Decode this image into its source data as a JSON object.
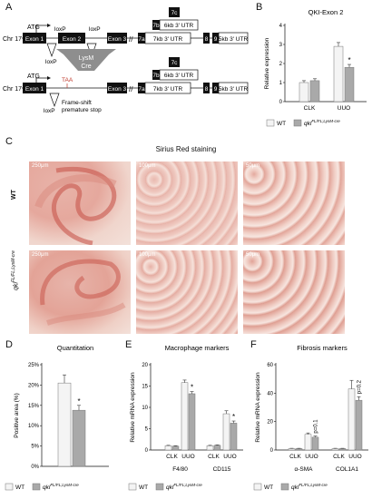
{
  "panels": {
    "A": {
      "letter": "A",
      "atg": "ATG",
      "chr": "Chr 17",
      "exon1": "Exon 1",
      "exon2": "Exon 2",
      "exon3": "Exon 3",
      "ex7a": "7a",
      "ex7b": "7b",
      "ex7c": "7c",
      "utr7b": "6kb 3' UTR",
      "utr7a": "7kb 3' UTR",
      "ex8": "8",
      "ex9": "9",
      "utr9": "5kb 3' UTR",
      "loxp": "loxP",
      "cre_line1": "LysM",
      "cre_line2": "Cre",
      "taa": "TAA",
      "frameshift1": "Frame-shift",
      "frameshift2": "premature stop"
    },
    "B": {
      "letter": "B",
      "title": "QKI-Exon 2",
      "legend_wt": "WT",
      "legend_ko": "qki",
      "legend_ko_sup": "FL/FL;LysM-cre"
    },
    "C": {
      "letter": "C",
      "title": "Sirius Red staining",
      "row_wt": "WT",
      "row_ko": "qki",
      "row_ko_sup": "FL/FL;LysM-cre",
      "scales_wt": [
        "250μm",
        "100μm",
        "50μm"
      ],
      "scales_ko": [
        "250μm",
        "100μm",
        "50μm"
      ]
    },
    "D": {
      "letter": "D",
      "title": "Quantitation",
      "legend_wt": "WT",
      "legend_ko": "qki",
      "legend_ko_sup": "FL/FL;LysM-cre"
    },
    "E": {
      "letter": "E",
      "title": "Macrophage markers",
      "legend_wt": "WT",
      "legend_ko": "qki",
      "legend_ko_sup": "FL/FL;LysM-cre"
    },
    "F": {
      "letter": "F",
      "title": "Fibrosis markers",
      "legend_wt": "WT",
      "legend_ko": "qki",
      "legend_ko_sup": "FL/FL;LysM-cre"
    }
  },
  "colors": {
    "wt": "#f4f4f4",
    "ko": "#a9a9a9",
    "exon": "#111111",
    "taa": "#c0392b",
    "cre": "#8e8e8e"
  },
  "chart_data": [
    {
      "id": "B",
      "type": "bar",
      "title": "QKI-Exon 2",
      "ylabel": "Relative expression",
      "ylim": [
        0,
        4
      ],
      "yticks": [
        0,
        1,
        2,
        3,
        4
      ],
      "categories": [
        "CLK",
        "UUO"
      ],
      "series": [
        {
          "name": "WT",
          "values": [
            1.0,
            2.9
          ],
          "errors": [
            0.1,
            0.2
          ]
        },
        {
          "name": "qki FL/FL;LysM-cre",
          "values": [
            1.1,
            1.8
          ],
          "errors": [
            0.1,
            0.15
          ]
        }
      ],
      "annotations": [
        {
          "text": "*",
          "category": "UUO",
          "series": 1
        }
      ]
    },
    {
      "id": "D",
      "type": "bar",
      "title": "Quantitation",
      "ylabel": "Positive area (%)",
      "ylim": [
        0,
        25
      ],
      "yticks": [
        0,
        5,
        10,
        15,
        20,
        25
      ],
      "categories": [
        ""
      ],
      "series": [
        {
          "name": "WT",
          "values": [
            20.5
          ],
          "errors": [
            2.0
          ]
        },
        {
          "name": "qki FL/FL;LysM-cre",
          "values": [
            13.8
          ],
          "errors": [
            1.2
          ]
        }
      ],
      "annotations": [
        {
          "text": "*",
          "category": "",
          "series": 1
        }
      ]
    },
    {
      "id": "E",
      "type": "bar",
      "title": "Macrophage markers",
      "ylabel": "Relative mRNA expression",
      "ylim": [
        0,
        20
      ],
      "yticks": [
        0,
        5,
        10,
        15,
        20
      ],
      "categories": [
        "CLK",
        "UUO",
        "CLK",
        "UUO"
      ],
      "groups": [
        "F4/80",
        "CD115"
      ],
      "series": [
        {
          "name": "WT",
          "values": [
            1.0,
            15.8,
            1.0,
            8.5
          ],
          "errors": [
            0.1,
            0.6,
            0.1,
            0.7
          ]
        },
        {
          "name": "qki FL/FL;LysM-cre",
          "values": [
            0.9,
            13.2,
            1.1,
            6.3
          ],
          "errors": [
            0.1,
            0.5,
            0.1,
            0.5
          ]
        }
      ],
      "annotations": [
        {
          "text": "*",
          "category": "UUO",
          "series": 1,
          "group": "F4/80"
        },
        {
          "text": "*",
          "category": "UUO",
          "series": 1,
          "group": "CD115"
        }
      ]
    },
    {
      "id": "F",
      "type": "bar",
      "title": "Fibrosis markers",
      "ylabel": "Relative mRNA expression",
      "ylim": [
        0,
        60
      ],
      "yticks": [
        0,
        20,
        40,
        60
      ],
      "categories": [
        "CLK",
        "UUO",
        "CLK",
        "UUO"
      ],
      "groups": [
        "α-SMA",
        "COL1A1"
      ],
      "series": [
        {
          "name": "WT",
          "values": [
            1.0,
            11.0,
            1.0,
            43.0
          ],
          "errors": [
            0.2,
            1.0,
            0.2,
            6.0
          ]
        },
        {
          "name": "qki FL/FL;LysM-cre",
          "values": [
            1.0,
            9.0,
            1.0,
            35.0
          ],
          "errors": [
            0.2,
            0.8,
            0.2,
            2.5
          ]
        }
      ],
      "annotations": [
        {
          "text": "p=0.1",
          "category": "UUO",
          "series": 1,
          "group": "α-SMA"
        },
        {
          "text": "p=0.2",
          "category": "UUO",
          "series": 1,
          "group": "COL1A1"
        }
      ]
    }
  ]
}
